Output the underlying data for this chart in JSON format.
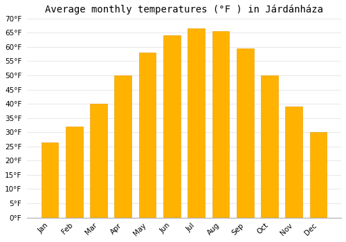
{
  "title": "Average monthly temperatures (°F ) in Járdánháza",
  "months": [
    "Jan",
    "Feb",
    "Mar",
    "Apr",
    "May",
    "Jun",
    "Jul",
    "Aug",
    "Sep",
    "Oct",
    "Nov",
    "Dec"
  ],
  "values": [
    26.5,
    32.0,
    40.0,
    50.0,
    58.0,
    64.0,
    66.5,
    65.5,
    59.5,
    50.0,
    39.0,
    30.0
  ],
  "bar_color_top": "#FFB300",
  "bar_color_bottom": "#FFA000",
  "bar_edge_color": "#E59400",
  "ylim": [
    0,
    70
  ],
  "yticks": [
    0,
    5,
    10,
    15,
    20,
    25,
    30,
    35,
    40,
    45,
    50,
    55,
    60,
    65,
    70
  ],
  "background_color": "#ffffff",
  "grid_color": "#dddddd",
  "title_fontsize": 10,
  "tick_fontsize": 7.5
}
